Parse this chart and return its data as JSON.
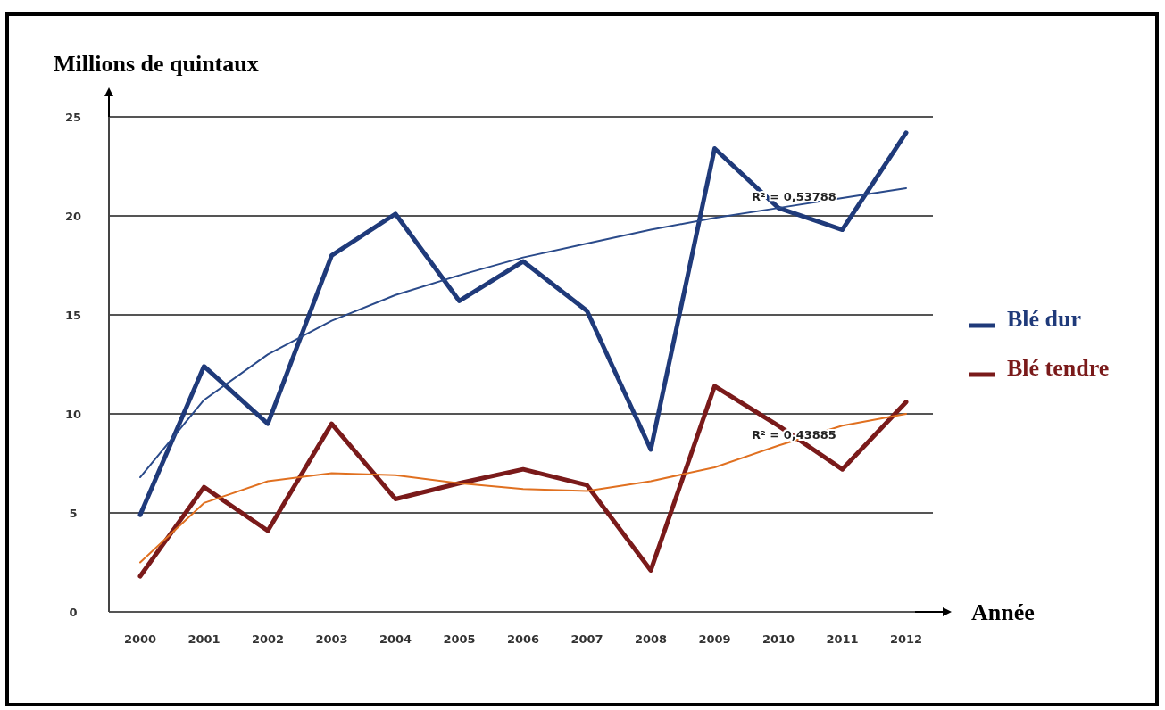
{
  "chart_data": {
    "type": "line",
    "ylabel": "Millions de quintaux",
    "xlabel": "Année",
    "categories": [
      "2000",
      "2001",
      "2002",
      "2003",
      "2004",
      "2005",
      "2006",
      "2007",
      "2008",
      "2009",
      "2010",
      "2011",
      "2012"
    ],
    "series": [
      {
        "name": "Blé dur",
        "color": "#1f3a7a",
        "values": [
          4.9,
          12.4,
          9.5,
          18.0,
          20.1,
          15.7,
          17.7,
          15.2,
          8.2,
          23.4,
          20.4,
          19.3,
          24.2
        ]
      },
      {
        "name": "Blé tendre",
        "color": "#7a1a1a",
        "values": [
          1.8,
          6.3,
          4.1,
          9.5,
          5.7,
          6.5,
          7.2,
          6.4,
          2.1,
          11.4,
          9.4,
          7.2,
          10.6
        ]
      },
      {
        "type": "line",
        "color": "#2a4a8a",
        "values": [
          6.8,
          10.7,
          13.0,
          14.7,
          16.0,
          17.0,
          17.9,
          18.6,
          19.3,
          19.9,
          20.4,
          20.9,
          21.4
        ]
      },
      {
        "type": "line",
        "color": "#e07020",
        "values": [
          2.5,
          5.5,
          6.6,
          7.0,
          6.9,
          6.5,
          6.2,
          6.1,
          6.6,
          7.3,
          8.4,
          9.4,
          10.0
        ]
      }
    ],
    "annotations": [
      "R² = 0,53788",
      "R² = 0,43885"
    ],
    "ylim": [
      0,
      25
    ],
    "yticks": [
      0,
      5,
      10,
      15,
      20,
      25
    ],
    "grid": "y",
    "legend": "right"
  }
}
